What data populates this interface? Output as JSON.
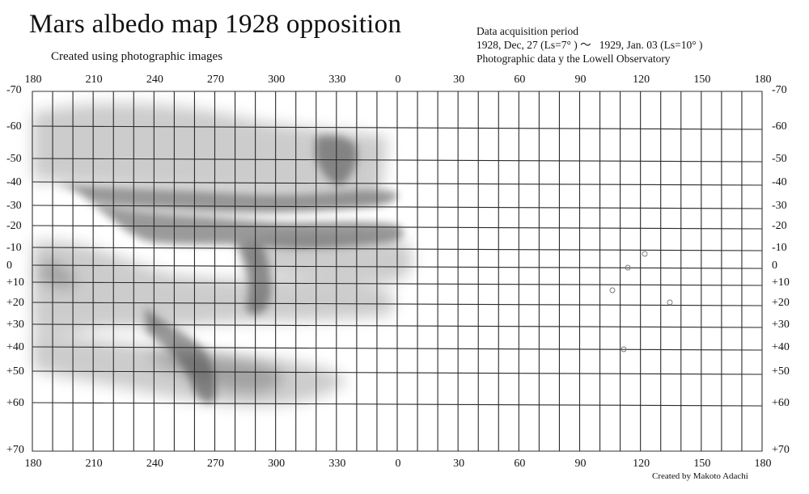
{
  "title": "Mars albedo map 1928 opposition",
  "subtitle": "Created using photographic images",
  "period": {
    "heading": "Data acquisition period",
    "dates": "1928, Dec, 27 (Ls=7° ) ～   1929, Jan. 03 (Ls=10° )",
    "source": "Photographic data y the Lowell Observatory"
  },
  "credit": "Created by Makoto Adachi",
  "longitude_labels": [
    "180",
    "210",
    "240",
    "270",
    "300",
    "330",
    "0",
    "30",
    "60",
    "90",
    "120",
    "150",
    "180"
  ],
  "latitude_labels": [
    {
      "label": "-70",
      "lat": -70
    },
    {
      "label": "-60",
      "lat": -60
    },
    {
      "label": "-50",
      "lat": -50
    },
    {
      "label": "-40",
      "lat": -40
    },
    {
      "label": "-30",
      "lat": -30
    },
    {
      "label": "-20",
      "lat": -20
    },
    {
      "label": "-10",
      "lat": -10
    },
    {
      "label": "0",
      "lat": 0
    },
    {
      "label": "+10",
      "lat": 10
    },
    {
      "label": "+20",
      "lat": 20
    },
    {
      "label": "+30",
      "lat": 30
    },
    {
      "label": "+40",
      "lat": 40
    },
    {
      "label": "+50",
      "lat": 50
    },
    {
      "label": "+60",
      "lat": 60
    },
    {
      "label": "+70",
      "lat": 70
    }
  ]
}
